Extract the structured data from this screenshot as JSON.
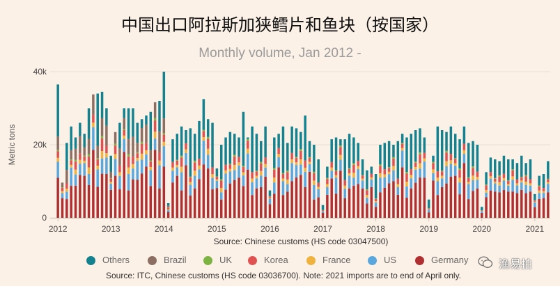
{
  "title": "中国出口阿拉斯加狭鳕片和鱼块（按国家）",
  "subtitle": "Monthly volume, Jan 2012 -",
  "source_line1": "Source: Chinese customs (HS code 03047500)",
  "source_line2": "Source: ITC, Chinese customs (HS code 03036700). Note: 2021 imports are to end of April only.",
  "watermark_text": "渔易拍",
  "colors": {
    "background": "#fcf1e7",
    "Others": "#14818f",
    "Brazil": "#8d6e63",
    "UK": "#7cb342",
    "Korea": "#e05252",
    "France": "#f0b23e",
    "US": "#5aa7dd",
    "Germany": "#b03032"
  },
  "chart_data": {
    "type": "bar",
    "stacked": true,
    "ylabel": "Metric tons",
    "xlabel": "",
    "ylim": [
      0,
      40000
    ],
    "y_ticks": [
      "0",
      "20k",
      "40k"
    ],
    "x_ticks": [
      "2012",
      "2013",
      "2014",
      "2015",
      "2016",
      "2017",
      "2018",
      "2019",
      "2020",
      "2021"
    ],
    "grid": true,
    "legend_position": "bottom",
    "legend": [
      "Others",
      "Brazil",
      "UK",
      "Korea",
      "France",
      "US",
      "Germany"
    ],
    "start_month": "2012-01",
    "monthly_totals": [
      36500,
      9000,
      20500,
      25000,
      22000,
      26000,
      23000,
      30000,
      31000,
      34000,
      34500,
      30000,
      17000,
      23000,
      26000,
      30000,
      30000,
      30000,
      26000,
      27000,
      28000,
      29000,
      31000,
      32000,
      40000,
      4000,
      21500,
      23000,
      25000,
      24000,
      24500,
      23000,
      26500,
      32500,
      27000,
      26000,
      13500,
      20000,
      22000,
      23500,
      23000,
      22000,
      29000,
      22000,
      25000,
      23000,
      21000,
      25000,
      7500,
      22000,
      23000,
      25000,
      20500,
      25000,
      24500,
      23500,
      28000,
      21000,
      20000,
      16000,
      3500,
      14000,
      21500,
      22000,
      21500,
      21500,
      23000,
      22000,
      20500,
      16000,
      13000,
      14000,
      12000,
      20000,
      20500,
      21000,
      20000,
      21000,
      23000,
      22000,
      23000,
      24000,
      24500,
      22000,
      5000,
      17000,
      25000,
      24000,
      23500,
      25000,
      23000,
      21500,
      25000,
      20500,
      21000,
      20000,
      3000,
      12500,
      16500,
      16000,
      15500,
      17000,
      16000,
      16000,
      15000,
      17000,
      15000,
      16000,
      6500,
      11500,
      12000,
      15500
    ],
    "series": [
      {
        "name": "Germany",
        "share": [
          0.3,
          0.6,
          0.25,
          0.35,
          0.4,
          0.45,
          0.5
        ]
      },
      {
        "name": "US",
        "share": [
          0.12,
          0.15,
          0.1,
          0.2,
          0.14
        ]
      },
      {
        "name": "France",
        "share": [
          0.03,
          0.06,
          0.04
        ]
      },
      {
        "name": "Korea",
        "share": [
          0.05,
          0.1,
          0.07
        ]
      },
      {
        "name": "UK",
        "share": [
          0.01,
          0.02,
          0.0
        ]
      },
      {
        "name": "Brazil",
        "share": [
          0.0,
          0.0,
          0.01
        ]
      },
      {
        "name": "Others",
        "share": "remainder"
      }
    ]
  }
}
